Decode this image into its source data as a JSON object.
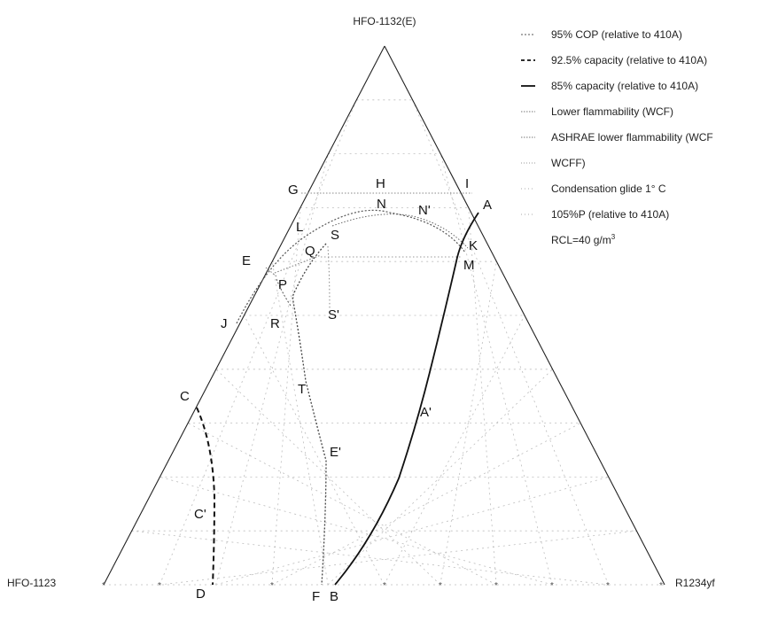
{
  "vertices": {
    "top": "HFO-1132(E)",
    "left": "HFO-1123",
    "right": "R1234yf"
  },
  "points": {
    "G": "G",
    "H": "H",
    "I": "I",
    "A": "A",
    "N": "N",
    "N_prime": "N'",
    "L": "L",
    "S": "S",
    "K": "K",
    "Q": "Q",
    "M": "M",
    "E": "E",
    "P": "P",
    "J": "J",
    "R": "R",
    "S_prime": "S'",
    "T": "T",
    "A_prime": "A'",
    "C": "C",
    "E_prime": "E'",
    "C_prime": "C'",
    "D": "D",
    "F": "F",
    "B": "B"
  },
  "legend": {
    "cop95": "95% COP (relative to 410A)",
    "cap925": "92.5% capacity (relative to 410A)",
    "cap85": "85% capacity (relative to 410A)",
    "lower_flam": "Lower flammability (WCF)",
    "ashrae_flam": "ASHRAE lower flammability (WCF",
    "wcff": "WCFF)",
    "glide": "Condensation glide 1° C",
    "p105": "105%P (relative to 410A)",
    "rcl_prefix": "RCL=40 g/m",
    "rcl_sup": "3"
  },
  "colors": {
    "ink": "#222222",
    "grid": "#bdbdbd",
    "dotted": "#888888"
  }
}
